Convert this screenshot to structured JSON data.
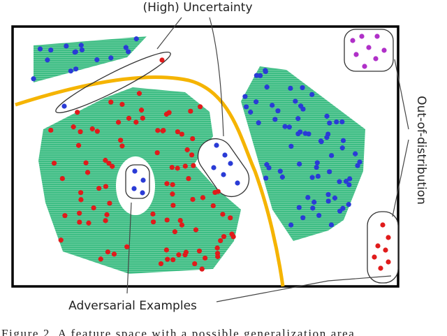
{
  "figure": {
    "labels": {
      "uncertainty": "(High) Uncertainty",
      "ood": "Out-of-distribution",
      "adversarial": "Adversarial Examples"
    },
    "caption": "Figure 2. A feature space with a possible generalization area"
  }
}
